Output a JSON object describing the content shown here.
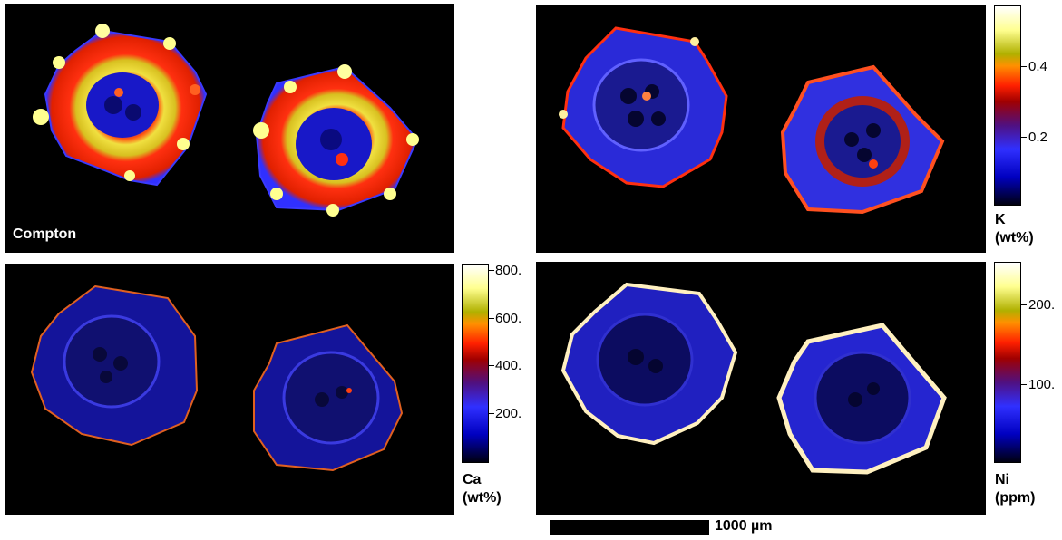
{
  "panels": {
    "compton": {
      "label": "Compton"
    },
    "potassium": {
      "colorbar": {
        "ticks": [
          "0.4",
          "0.2"
        ],
        "title_line1": "K",
        "title_line2": "(wt%)"
      }
    },
    "calcium": {
      "colorbar": {
        "ticks": [
          "800.",
          "600.",
          "400.",
          "200."
        ],
        "title_line1": "Ca",
        "title_line2": "(wt%)"
      }
    },
    "nickel": {
      "colorbar": {
        "ticks": [
          "200.",
          "100."
        ],
        "title_line1": "Ni",
        "title_line2": "(ppm)"
      }
    }
  },
  "scalebar": {
    "label": "1000 µm"
  },
  "colors": {
    "background": "#000000",
    "colormap": [
      "#000010",
      "#0000c0",
      "#3030ff",
      "#5010a0",
      "#a00000",
      "#ff2000",
      "#ff9000",
      "#c8c000",
      "#ffff90",
      "#ffffff"
    ]
  }
}
